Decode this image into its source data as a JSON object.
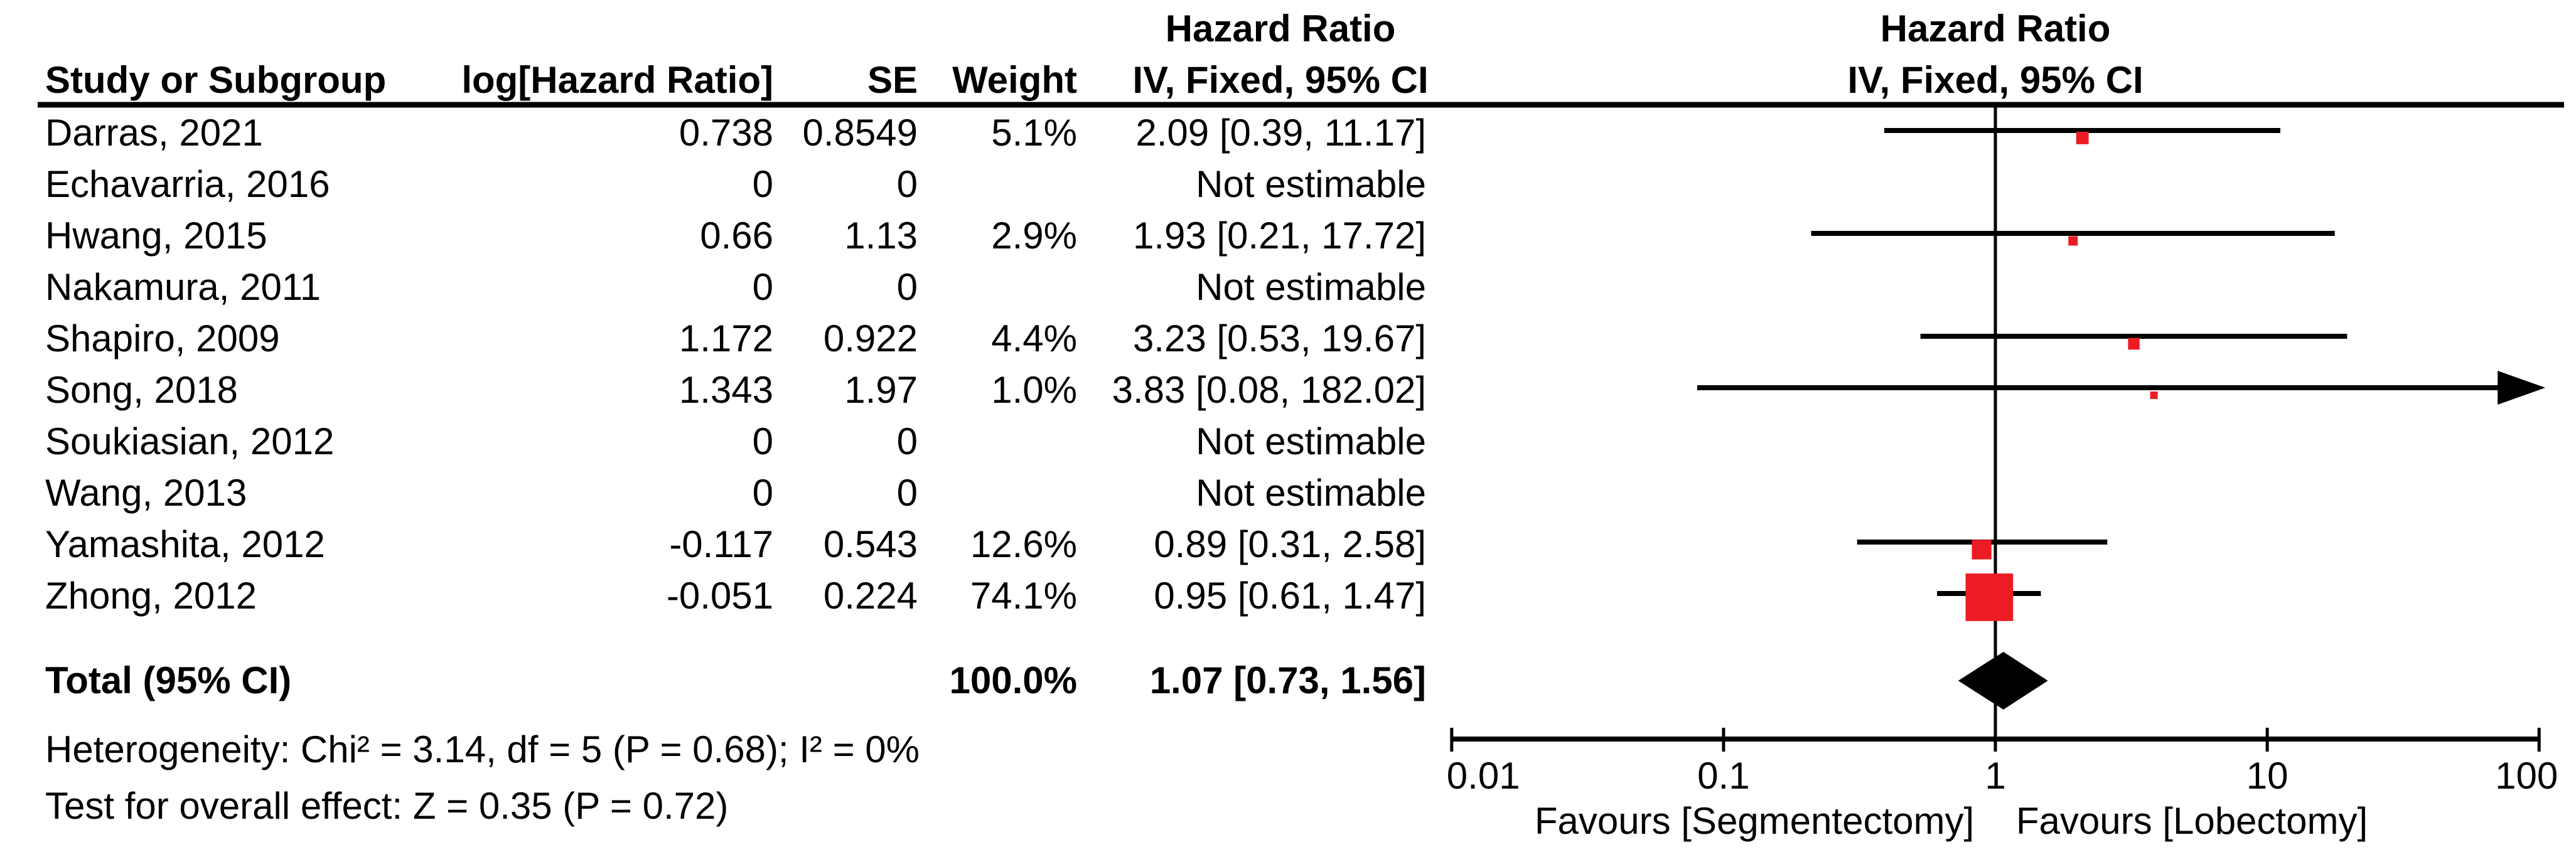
{
  "page": {
    "background": "#ffffff"
  },
  "chart_data": {
    "type": "forest",
    "effect_measure": "Hazard Ratio",
    "method": "IV, Fixed, 95% CI",
    "columns": {
      "study": "Study or Subgroup",
      "log_hr": "log[Hazard Ratio]",
      "se": "SE",
      "weight": "Weight",
      "ci_header_top": "Hazard Ratio",
      "ci_header_bottom": "IV, Fixed, 95% CI",
      "plot_header_top": "Hazard Ratio",
      "plot_header_bottom": "IV, Fixed, 95% CI"
    },
    "studies": [
      {
        "name": "Darras, 2021",
        "log_hr": "0.738",
        "se": "0.8549",
        "weight": "5.1%",
        "weight_value": 5.1,
        "ci_text": "2.09 [0.39, 11.17]",
        "estimable": true,
        "hr": 2.09,
        "ci_low": 0.39,
        "ci_high": 11.17
      },
      {
        "name": "Echavarria, 2016",
        "log_hr": "0",
        "se": "0",
        "weight": "",
        "weight_value": 0,
        "ci_text": "Not estimable",
        "estimable": false
      },
      {
        "name": "Hwang, 2015",
        "log_hr": "0.66",
        "se": "1.13",
        "weight": "2.9%",
        "weight_value": 2.9,
        "ci_text": "1.93 [0.21, 17.72]",
        "estimable": true,
        "hr": 1.93,
        "ci_low": 0.21,
        "ci_high": 17.72
      },
      {
        "name": "Nakamura, 2011",
        "log_hr": "0",
        "se": "0",
        "weight": "",
        "weight_value": 0,
        "ci_text": "Not estimable",
        "estimable": false
      },
      {
        "name": "Shapiro, 2009",
        "log_hr": "1.172",
        "se": "0.922",
        "weight": "4.4%",
        "weight_value": 4.4,
        "ci_text": "3.23 [0.53, 19.67]",
        "estimable": true,
        "hr": 3.23,
        "ci_low": 0.53,
        "ci_high": 19.67
      },
      {
        "name": "Song, 2018",
        "log_hr": "1.343",
        "se": "1.97",
        "weight": "1.0%",
        "weight_value": 1.0,
        "ci_text": "3.83 [0.08, 182.02]",
        "estimable": true,
        "hr": 3.83,
        "ci_low": 0.08,
        "ci_high": 182.02
      },
      {
        "name": "Soukiasian, 2012",
        "log_hr": "0",
        "se": "0",
        "weight": "",
        "weight_value": 0,
        "ci_text": "Not estimable",
        "estimable": false
      },
      {
        "name": "Wang, 2013",
        "log_hr": "0",
        "se": "0",
        "weight": "",
        "weight_value": 0,
        "ci_text": "Not estimable",
        "estimable": false
      },
      {
        "name": "Yamashita, 2012",
        "log_hr": "-0.117",
        "se": "0.543",
        "weight": "12.6%",
        "weight_value": 12.6,
        "ci_text": "0.89 [0.31, 2.58]",
        "estimable": true,
        "hr": 0.89,
        "ci_low": 0.31,
        "ci_high": 2.58
      },
      {
        "name": "Zhong, 2012",
        "log_hr": "-0.051",
        "se": "0.224",
        "weight": "74.1%",
        "weight_value": 74.1,
        "ci_text": "0.95 [0.61, 1.47]",
        "estimable": true,
        "hr": 0.95,
        "ci_low": 0.61,
        "ci_high": 1.47
      }
    ],
    "total": {
      "label": "Total (95% CI)",
      "weight": "100.0%",
      "ci_text": "1.07 [0.73, 1.56]",
      "hr": 1.07,
      "ci_low": 0.73,
      "ci_high": 1.56
    },
    "footnotes": {
      "heterogeneity": "Heterogeneity: Chi² = 3.14, df = 5 (P = 0.68); I² = 0%",
      "overall_effect": "Test for overall effect: Z = 0.35 (P = 0.72)"
    },
    "x_axis": {
      "scale": "log",
      "min": 0.01,
      "max": 100,
      "ticks": [
        0.01,
        0.1,
        1,
        10,
        100
      ],
      "tick_labels": [
        "0.01",
        "0.1",
        "1",
        "10",
        "100"
      ]
    },
    "favours_left": "Favours [Segmentectomy]",
    "favours_right": "Favours [Lobectomy]",
    "colors": {
      "marker": "#ed1c24",
      "line": "#000000",
      "diamond": "#000000"
    }
  }
}
